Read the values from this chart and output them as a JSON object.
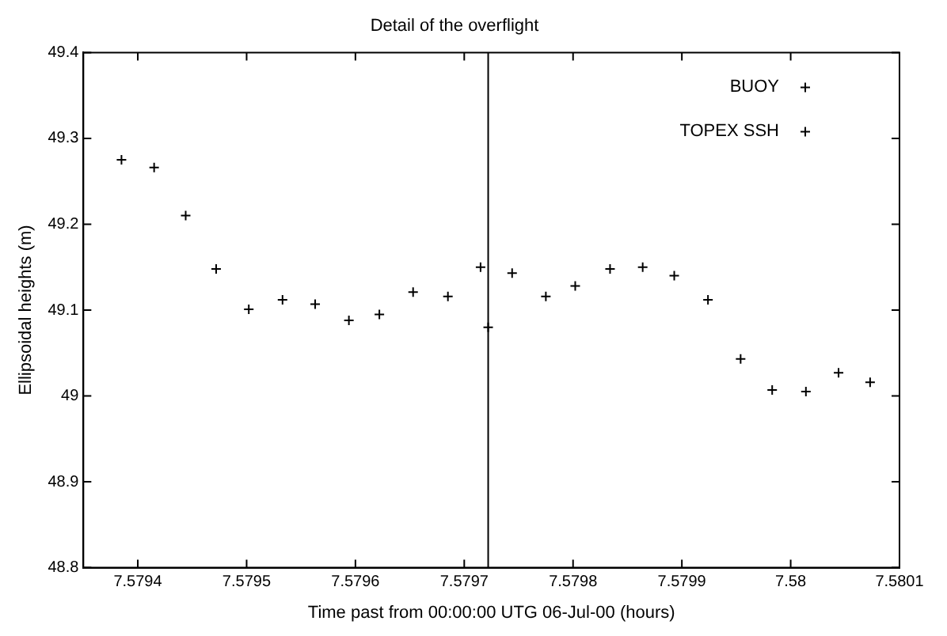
{
  "chart_data": {
    "type": "scatter",
    "title": "Detail of the overflight",
    "xlabel": "Time past from 00:00:00 UTG 06-Jul-00 (hours)",
    "ylabel": "Ellipsoidal heights (m)",
    "xlim": [
      7.57935,
      7.5801
    ],
    "xticks": [
      7.5794,
      7.5795,
      7.5796,
      7.5797,
      7.5798,
      7.5799,
      7.58,
      7.5801
    ],
    "ylim": [
      48.8,
      49.4
    ],
    "yticks": [
      48.8,
      48.9,
      49,
      49.1,
      49.2,
      49.3,
      49.4
    ],
    "grid": false,
    "legend": "top right",
    "marker": "cross",
    "ref_lines": [
      {
        "axis": "x",
        "value": 7.579722,
        "color": "#000000"
      }
    ],
    "series": [
      {
        "name": "BUOY",
        "color": "#000000",
        "x": [
          7.579722
        ],
        "values": [
          49.08
        ]
      },
      {
        "name": "TOPEX SSH",
        "color": "#000000",
        "x": [
          7.579385,
          7.579415,
          7.579444,
          7.579472,
          7.579502,
          7.579533,
          7.579563,
          7.579594,
          7.579622,
          7.579653,
          7.579685,
          7.579715,
          7.579744,
          7.579775,
          7.579802,
          7.579834,
          7.579864,
          7.579893,
          7.579924,
          7.579954,
          7.579983,
          7.580014,
          7.580044,
          7.580073
        ],
        "values": [
          49.275,
          49.266,
          49.21,
          49.148,
          49.101,
          49.112,
          49.107,
          49.088,
          49.095,
          49.121,
          49.116,
          49.15,
          49.143,
          49.116,
          49.128,
          49.148,
          49.15,
          49.14,
          49.112,
          49.043,
          49.007,
          49.005,
          49.027,
          49.016
        ]
      }
    ]
  }
}
